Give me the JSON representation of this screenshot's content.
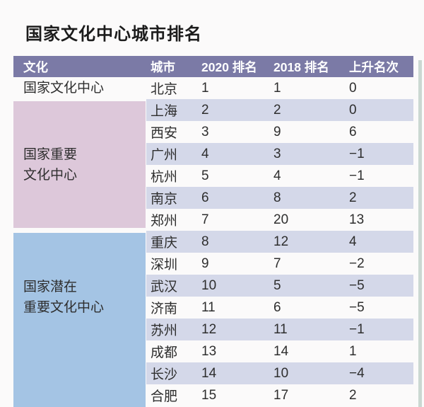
{
  "chart_data": {
    "type": "table",
    "title": "国家文化中心城市排名",
    "columns": [
      "文化",
      "城市",
      "2020 排名",
      "2018 排名",
      "上升名次"
    ],
    "groups": [
      {
        "name": "国家文化中心",
        "lines": [
          "国家文化中心"
        ],
        "bg": "#fbfafa",
        "cities": [
          "北京"
        ]
      },
      {
        "name": "国家重要文化中心",
        "lines": [
          "国家重要",
          "文化中心"
        ],
        "bg": "#ddc8da",
        "cities": [
          "上海",
          "西安",
          "广州",
          "杭州",
          "南京",
          "郑州"
        ]
      },
      {
        "name": "国家潜在重要文化中心",
        "lines": [
          "国家潜在",
          "重要文化中心"
        ],
        "bg": "#a4c4e4",
        "cities": [
          "重庆",
          "深圳",
          "武汉",
          "济南",
          "苏州",
          "成都",
          "长沙",
          "合肥"
        ]
      }
    ],
    "rows": [
      {
        "group": "国家文化中心",
        "city": "北京",
        "rank2020": "1",
        "rank2018": "1",
        "change": "0"
      },
      {
        "group": "国家重要文化中心",
        "city": "上海",
        "rank2020": "2",
        "rank2018": "2",
        "change": "0"
      },
      {
        "group": "国家重要文化中心",
        "city": "西安",
        "rank2020": "3",
        "rank2018": "9",
        "change": "6"
      },
      {
        "group": "国家重要文化中心",
        "city": "广州",
        "rank2020": "4",
        "rank2018": "3",
        "change": "−1"
      },
      {
        "group": "国家重要文化中心",
        "city": "杭州",
        "rank2020": "5",
        "rank2018": "4",
        "change": "−1"
      },
      {
        "group": "国家重要文化中心",
        "city": "南京",
        "rank2020": "6",
        "rank2018": "8",
        "change": "2"
      },
      {
        "group": "国家重要文化中心",
        "city": "郑州",
        "rank2020": "7",
        "rank2018": "20",
        "change": "13"
      },
      {
        "group": "国家潜在重要文化中心",
        "city": "重庆",
        "rank2020": "8",
        "rank2018": "12",
        "change": "4"
      },
      {
        "group": "国家潜在重要文化中心",
        "city": "深圳",
        "rank2020": "9",
        "rank2018": "7",
        "change": "−2"
      },
      {
        "group": "国家潜在重要文化中心",
        "city": "武汉",
        "rank2020": "10",
        "rank2018": "5",
        "change": "−5"
      },
      {
        "group": "国家潜在重要文化中心",
        "city": "济南",
        "rank2020": "11",
        "rank2018": "6",
        "change": "−5"
      },
      {
        "group": "国家潜在重要文化中心",
        "city": "苏州",
        "rank2020": "12",
        "rank2018": "11",
        "change": "−1"
      },
      {
        "group": "国家潜在重要文化中心",
        "city": "成都",
        "rank2020": "13",
        "rank2018": "14",
        "change": "1"
      },
      {
        "group": "国家潜在重要文化中心",
        "city": "长沙",
        "rank2020": "14",
        "rank2018": "10",
        "change": "−4"
      },
      {
        "group": "国家潜在重要文化中心",
        "city": "合肥",
        "rank2020": "15",
        "rank2018": "17",
        "change": "2"
      }
    ],
    "layout": {
      "legend": "none",
      "grid": "alternating-row-shading",
      "colors": {
        "header_bg": "#7b7aa6",
        "header_text": "#ffffff",
        "row_shaded": "#d4d8e9",
        "group_important_bg": "#ddc8da",
        "group_potential_bg": "#a4c4e4",
        "page_bg": "#fbfafa"
      }
    }
  }
}
